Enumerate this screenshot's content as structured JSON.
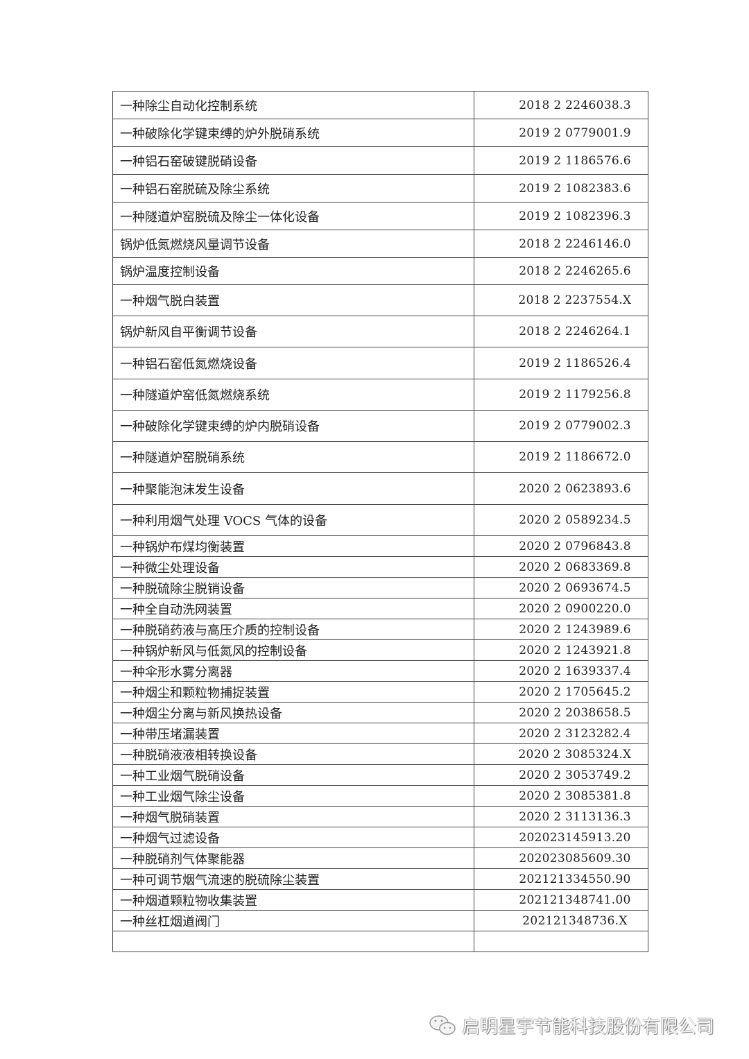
{
  "patents": [
    {
      "name": "一种除尘自动化控制系统",
      "number": "2018 2 2246038.3"
    },
    {
      "name": "一种破除化学键束缚的炉外脱硝系统",
      "number": "2019 2 0779001.9"
    },
    {
      "name": "一种铝石窑破键脱硝设备",
      "number": "2019 2 1186576.6"
    },
    {
      "name": "一种铝石窑脱硫及除尘系统",
      "number": "2019 2 1082383.6"
    },
    {
      "name": "一种隧道炉窑脱硫及除尘一体化设备",
      "number": "2019 2 1082396.3"
    },
    {
      "name": "锅炉低氮燃烧风量调节设备",
      "number": "2018 2 2246146.0"
    },
    {
      "name": "锅炉温度控制设备",
      "number": "2018 2 2246265.6"
    },
    {
      "name": "一种烟气脱白装置",
      "number": "2018 2 2237554.X"
    },
    {
      "name": "锅炉新风自平衡调节设备",
      "number": "2018 2 2246264.1"
    },
    {
      "name": "一种铝石窑低氮燃烧设备",
      "number": "2019 2 1186526.4"
    },
    {
      "name": "一种隧道炉窑低氮燃烧系统",
      "number": "2019 2 1179256.8"
    },
    {
      "name": "一种破除化学键束缚的炉内脱硝设备",
      "number": "2019 2 0779002.3"
    },
    {
      "name": "一种隧道炉窑脱硝系统",
      "number": "2019 2 1186672.0"
    },
    {
      "name": "一种聚能泡沫发生设备",
      "number": "2020 2 0623893.6"
    },
    {
      "name": "一种利用烟气处理 VOCS 气体的设备",
      "number": "2020 2 0589234.5"
    },
    {
      "name": "一种锅炉布煤均衡装置",
      "number": "2020 2 0796843.8"
    },
    {
      "name": "一种微尘处理设备",
      "number": "2020 2 0683369.8"
    },
    {
      "name": "一种脱硫除尘脱销设备",
      "number": "2020 2 0693674.5"
    },
    {
      "name": "一种全自动洗网装置",
      "number": "2020 2 0900220.0"
    },
    {
      "name": "一种脱硝药液与高压介质的控制设备",
      "number": "2020 2 1243989.6"
    },
    {
      "name": "一种锅炉新风与低氮风的控制设备",
      "number": "2020 2 1243921.8"
    },
    {
      "name": "一种伞形水雾分离器",
      "number": "2020 2 1639337.4"
    },
    {
      "name": "一种烟尘和颗粒物捕捉装置",
      "number": "2020 2 1705645.2"
    },
    {
      "name": "一种烟尘分离与新风换热设备",
      "number": "2020 2 2038658.5"
    },
    {
      "name": "一种带压堵漏装置",
      "number": "2020 2 3123282.4"
    },
    {
      "name": "一种脱硝液液相转换设备",
      "number": "2020 2 3085324.X"
    },
    {
      "name": "一种工业烟气脱硝设备",
      "number": "2020 2 3053749.2"
    },
    {
      "name": "一种工业烟气除尘设备",
      "number": "2020 2 3085381.8"
    },
    {
      "name": "一种烟气脱硝装置",
      "number": "2020 2 3113136.3"
    },
    {
      "name": "一种烟气过滤设备",
      "number": "202023145913.20"
    },
    {
      "name": "一种脱硝剂气体聚能器",
      "number": "202023085609.30"
    },
    {
      "name": "一种可调节烟气流速的脱硫除尘装置",
      "number": "202121334550.90"
    },
    {
      "name": "一种烟道颗粒物收集装置",
      "number": "202121348741.00"
    },
    {
      "name": "一种丝杠烟道阀门",
      "number": "202121348736.X"
    },
    {
      "name": "",
      "number": ""
    }
  ],
  "watermark": {
    "text": "启明星宇节能科技股份有限公司",
    "icon": "wechat-icon"
  }
}
